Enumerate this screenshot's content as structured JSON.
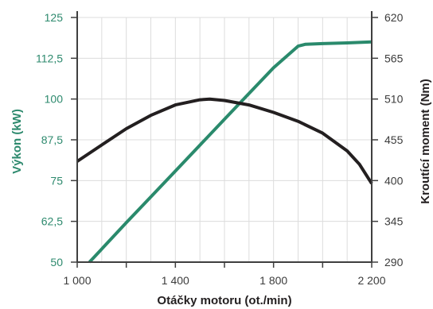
{
  "chart_data": {
    "type": "line",
    "xlabel": "Otáčky motoru (ot./min)",
    "ylabel_left": "Výkon (kW)",
    "ylabel_right": "Kroutící moment (Nm)",
    "xlim": [
      1000,
      2200
    ],
    "ylim_left": [
      50,
      125
    ],
    "ylim_right": [
      290,
      620
    ],
    "x_ticks": [
      1000,
      1400,
      1800,
      2200
    ],
    "x_tick_labels": [
      "1 000",
      "1 400",
      "1 800",
      "2 200"
    ],
    "y_left_ticks": [
      50,
      62.5,
      75,
      87.5,
      100,
      112.5,
      125
    ],
    "y_left_tick_labels": [
      "50",
      "62,5",
      "75",
      "87,5",
      "100",
      "112,5",
      "125"
    ],
    "y_right_ticks": [
      290,
      345,
      400,
      455,
      510,
      565,
      620
    ],
    "y_right_tick_labels": [
      "290",
      "345",
      "400",
      "455",
      "510",
      "565",
      "620"
    ],
    "grid": true,
    "colors": {
      "power": "#2a8a6c",
      "torque": "#231f20",
      "left_axis": "#2e8a6e",
      "right_axis": "#3c3c3c"
    },
    "series": [
      {
        "axis": "left",
        "color": "#2a8a6c",
        "x": [
          1050,
          1200,
          1400,
          1600,
          1800,
          1900,
          1930,
          2000,
          2100,
          2200
        ],
        "y": [
          50,
          62.1,
          77.9,
          93.8,
          109.6,
          116.2,
          116.8,
          117.0,
          117.2,
          117.5
        ]
      },
      {
        "axis": "right",
        "color": "#231f20",
        "x": [
          1000,
          1100,
          1200,
          1300,
          1400,
          1500,
          1540,
          1600,
          1700,
          1800,
          1900,
          2000,
          2100,
          2150,
          2200
        ],
        "y": [
          426,
          448,
          470,
          488,
          502,
          509,
          510,
          508,
          502,
          492,
          480,
          464,
          440,
          422,
          396
        ]
      }
    ]
  }
}
